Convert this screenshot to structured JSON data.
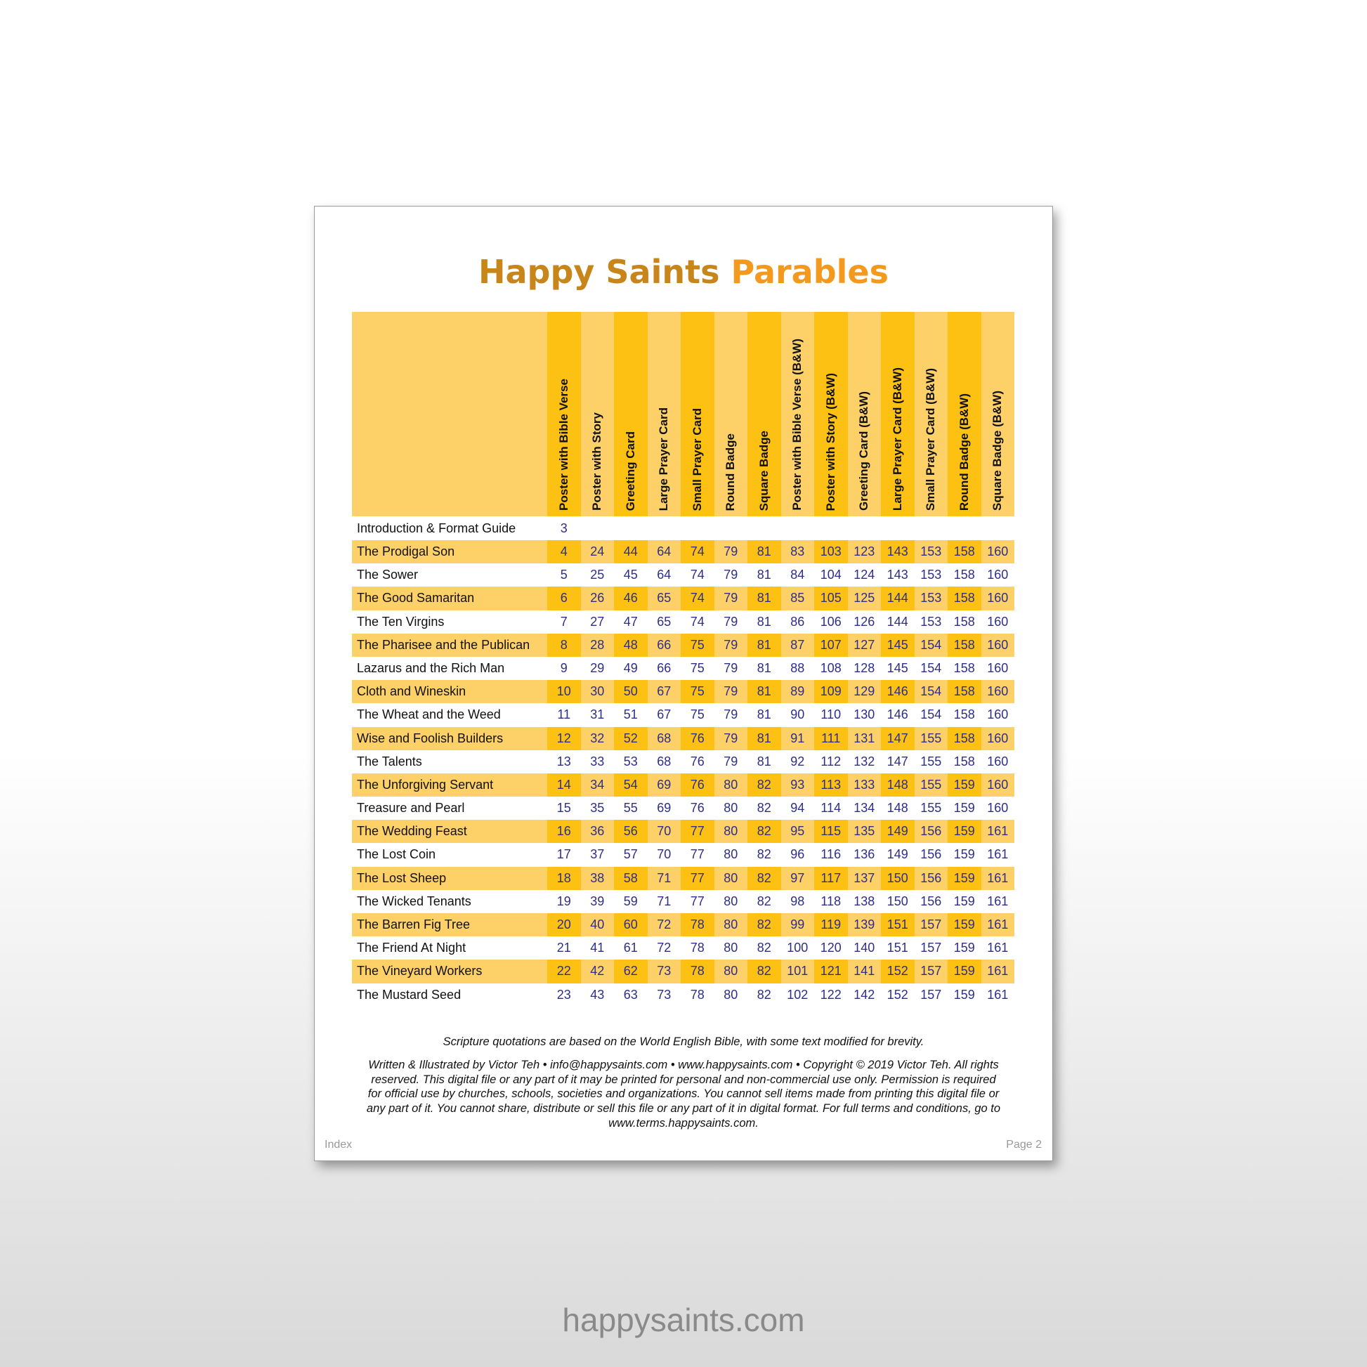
{
  "title": {
    "part1": "Happy Saints",
    "part2": "Parables",
    "color1": "#c8861a",
    "color2": "#f39a1e"
  },
  "colors": {
    "stripe_light": "#fdd068",
    "stripe_dark": "#fdc114",
    "number_text": "#2e2e8a"
  },
  "columns": [
    "Poster with Bible Verse",
    "Poster with Story",
    "Greeting Card",
    "Large Prayer Card",
    "Small Prayer Card",
    "Round Badge",
    "Square Badge",
    "Poster with Bible Verse (B&W)",
    "Poster with Story (B&W)",
    "Greeting Card (B&W)",
    "Large Prayer Card (B&W)",
    "Small Prayer Card (B&W)",
    "Round Badge (B&W)",
    "Square Badge (B&W)"
  ],
  "intro": {
    "name": "Introduction & Format Guide",
    "page": "3"
  },
  "rows": [
    {
      "name": "The Prodigal Son",
      "pages": [
        "4",
        "24",
        "44",
        "64",
        "74",
        "79",
        "81",
        "83",
        "103",
        "123",
        "143",
        "153",
        "158",
        "160"
      ]
    },
    {
      "name": "The Sower",
      "pages": [
        "5",
        "25",
        "45",
        "64",
        "74",
        "79",
        "81",
        "84",
        "104",
        "124",
        "143",
        "153",
        "158",
        "160"
      ]
    },
    {
      "name": "The Good Samaritan",
      "pages": [
        "6",
        "26",
        "46",
        "65",
        "74",
        "79",
        "81",
        "85",
        "105",
        "125",
        "144",
        "153",
        "158",
        "160"
      ]
    },
    {
      "name": "The Ten Virgins",
      "pages": [
        "7",
        "27",
        "47",
        "65",
        "74",
        "79",
        "81",
        "86",
        "106",
        "126",
        "144",
        "153",
        "158",
        "160"
      ]
    },
    {
      "name": "The Pharisee and the Publican",
      "pages": [
        "8",
        "28",
        "48",
        "66",
        "75",
        "79",
        "81",
        "87",
        "107",
        "127",
        "145",
        "154",
        "158",
        "160"
      ]
    },
    {
      "name": "Lazarus and the Rich Man",
      "pages": [
        "9",
        "29",
        "49",
        "66",
        "75",
        "79",
        "81",
        "88",
        "108",
        "128",
        "145",
        "154",
        "158",
        "160"
      ]
    },
    {
      "name": "Cloth and Wineskin",
      "pages": [
        "10",
        "30",
        "50",
        "67",
        "75",
        "79",
        "81",
        "89",
        "109",
        "129",
        "146",
        "154",
        "158",
        "160"
      ]
    },
    {
      "name": "The Wheat and the Weed",
      "pages": [
        "11",
        "31",
        "51",
        "67",
        "75",
        "79",
        "81",
        "90",
        "110",
        "130",
        "146",
        "154",
        "158",
        "160"
      ]
    },
    {
      "name": "Wise and Foolish Builders",
      "pages": [
        "12",
        "32",
        "52",
        "68",
        "76",
        "79",
        "81",
        "91",
        "111",
        "131",
        "147",
        "155",
        "158",
        "160"
      ]
    },
    {
      "name": "The Talents",
      "pages": [
        "13",
        "33",
        "53",
        "68",
        "76",
        "79",
        "81",
        "92",
        "112",
        "132",
        "147",
        "155",
        "158",
        "160"
      ]
    },
    {
      "name": "The Unforgiving Servant",
      "pages": [
        "14",
        "34",
        "54",
        "69",
        "76",
        "80",
        "82",
        "93",
        "113",
        "133",
        "148",
        "155",
        "159",
        "160"
      ]
    },
    {
      "name": "Treasure and Pearl",
      "pages": [
        "15",
        "35",
        "55",
        "69",
        "76",
        "80",
        "82",
        "94",
        "114",
        "134",
        "148",
        "155",
        "159",
        "160"
      ]
    },
    {
      "name": "The Wedding Feast",
      "pages": [
        "16",
        "36",
        "56",
        "70",
        "77",
        "80",
        "82",
        "95",
        "115",
        "135",
        "149",
        "156",
        "159",
        "161"
      ]
    },
    {
      "name": "The Lost Coin",
      "pages": [
        "17",
        "37",
        "57",
        "70",
        "77",
        "80",
        "82",
        "96",
        "116",
        "136",
        "149",
        "156",
        "159",
        "161"
      ]
    },
    {
      "name": "The Lost Sheep",
      "pages": [
        "18",
        "38",
        "58",
        "71",
        "77",
        "80",
        "82",
        "97",
        "117",
        "137",
        "150",
        "156",
        "159",
        "161"
      ]
    },
    {
      "name": "The Wicked Tenants",
      "pages": [
        "19",
        "39",
        "59",
        "71",
        "77",
        "80",
        "82",
        "98",
        "118",
        "138",
        "150",
        "156",
        "159",
        "161"
      ]
    },
    {
      "name": "The Barren Fig Tree",
      "pages": [
        "20",
        "40",
        "60",
        "72",
        "78",
        "80",
        "82",
        "99",
        "119",
        "139",
        "151",
        "157",
        "159",
        "161"
      ]
    },
    {
      "name": "The Friend At Night",
      "pages": [
        "21",
        "41",
        "61",
        "72",
        "78",
        "80",
        "82",
        "100",
        "120",
        "140",
        "151",
        "157",
        "159",
        "161"
      ]
    },
    {
      "name": "The Vineyard Workers",
      "pages": [
        "22",
        "42",
        "62",
        "73",
        "78",
        "80",
        "82",
        "101",
        "121",
        "141",
        "152",
        "157",
        "159",
        "161"
      ]
    },
    {
      "name": "The Mustard Seed",
      "pages": [
        "23",
        "43",
        "63",
        "73",
        "78",
        "80",
        "82",
        "102",
        "122",
        "142",
        "152",
        "157",
        "159",
        "161"
      ]
    }
  ],
  "footer": {
    "scripture": "Scripture quotations are based on the World English Bible, with some text modified for brevity.",
    "copyright": "Written & Illustrated by Victor Teh • info@happysaints.com • www.happysaints.com • Copyright © 2019 Victor Teh. All rights reserved. This digital file or any part of it may be printed for personal and non-commercial use only. Permission is required for official use by churches, schools, societies and organizations. You cannot sell items made from printing this digital file or any part of it. You cannot share, distribute or sell this file or any part of it in digital format. For full terms and conditions, go to www.terms.happysaints.com.",
    "section": "Index",
    "page": "Page 2"
  },
  "watermark": "happysaints.com"
}
